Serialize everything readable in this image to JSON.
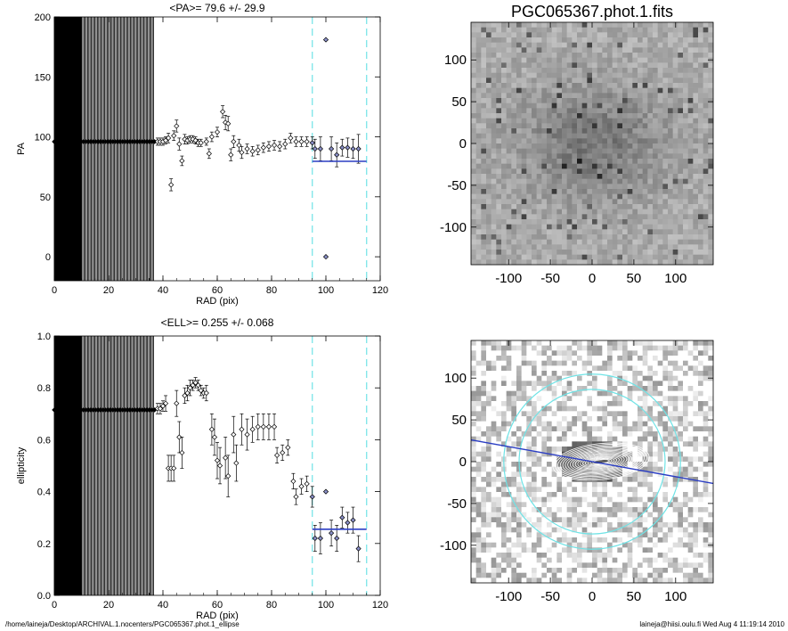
{
  "chart_data": [
    {
      "type": "scatter",
      "panel": "pa-profile",
      "title": "<PA>=  79.6 +/-  29.9",
      "xlabel": "RAD (pix)",
      "ylabel": "PA",
      "xlim": [
        0,
        120
      ],
      "ylim": [
        -20,
        200
      ],
      "xticks": [
        0,
        20,
        40,
        60,
        80,
        100,
        120
      ],
      "yticks": [
        0,
        50,
        100,
        150,
        200
      ],
      "grid": false,
      "inner_flat_value": 96,
      "inner_flat_until": 37,
      "points": [
        {
          "x": 38,
          "y": 96,
          "e": 3
        },
        {
          "x": 39,
          "y": 96,
          "e": 3
        },
        {
          "x": 40,
          "y": 96,
          "e": 3
        },
        {
          "x": 41,
          "y": 97,
          "e": 3
        },
        {
          "x": 42,
          "y": 99,
          "e": 4
        },
        {
          "x": 43,
          "y": 60,
          "e": 5
        },
        {
          "x": 44,
          "y": 101,
          "e": 4
        },
        {
          "x": 45,
          "y": 109,
          "e": 5
        },
        {
          "x": 46,
          "y": 94,
          "e": 5
        },
        {
          "x": 47,
          "y": 80,
          "e": 4
        },
        {
          "x": 48,
          "y": 98,
          "e": 4
        },
        {
          "x": 49,
          "y": 97,
          "e": 3
        },
        {
          "x": 50,
          "y": 98,
          "e": 3
        },
        {
          "x": 51,
          "y": 98,
          "e": 3
        },
        {
          "x": 52,
          "y": 97,
          "e": 3
        },
        {
          "x": 53,
          "y": 95,
          "e": 3
        },
        {
          "x": 54,
          "y": 95,
          "e": 3
        },
        {
          "x": 56,
          "y": 96,
          "e": 3
        },
        {
          "x": 57,
          "y": 86,
          "e": 4
        },
        {
          "x": 58,
          "y": 100,
          "e": 4
        },
        {
          "x": 60,
          "y": 104,
          "e": 4
        },
        {
          "x": 62,
          "y": 121,
          "e": 5
        },
        {
          "x": 63,
          "y": 112,
          "e": 6
        },
        {
          "x": 64,
          "y": 111,
          "e": 6
        },
        {
          "x": 65,
          "y": 85,
          "e": 5
        },
        {
          "x": 66,
          "y": 96,
          "e": 5
        },
        {
          "x": 68,
          "y": 93,
          "e": 5
        },
        {
          "x": 69,
          "y": 87,
          "e": 5
        },
        {
          "x": 71,
          "y": 90,
          "e": 4
        },
        {
          "x": 73,
          "y": 88,
          "e": 4
        },
        {
          "x": 75,
          "y": 89,
          "e": 4
        },
        {
          "x": 77,
          "y": 91,
          "e": 4
        },
        {
          "x": 79,
          "y": 92,
          "e": 4
        },
        {
          "x": 81,
          "y": 93,
          "e": 4
        },
        {
          "x": 83,
          "y": 92,
          "e": 4
        },
        {
          "x": 85,
          "y": 94,
          "e": 4
        },
        {
          "x": 87,
          "y": 99,
          "e": 4
        },
        {
          "x": 89,
          "y": 96,
          "e": 4
        },
        {
          "x": 91,
          "y": 96,
          "e": 4
        },
        {
          "x": 93,
          "y": 96,
          "e": 4
        },
        {
          "x": 95,
          "y": 95,
          "e": 5
        },
        {
          "x": 96,
          "y": 90,
          "e": 8
        },
        {
          "x": 98,
          "y": 90,
          "e": 10
        },
        {
          "x": 100,
          "y": 181,
          "e": 0
        },
        {
          "x": 100,
          "y": 0,
          "e": 0
        },
        {
          "x": 102,
          "y": 90,
          "e": 10
        },
        {
          "x": 104,
          "y": 85,
          "e": 10
        },
        {
          "x": 106,
          "y": 91,
          "e": 7
        },
        {
          "x": 108,
          "y": 91,
          "e": 8
        },
        {
          "x": 110,
          "y": 90,
          "e": 8
        },
        {
          "x": 112,
          "y": 90,
          "e": 12
        }
      ],
      "fit_range": [
        95,
        115
      ],
      "fit_value": 79.6,
      "fit_color": "#2b3ec4",
      "vline_color": "#6fe3e6"
    },
    {
      "type": "scatter",
      "panel": "ell-profile",
      "title": "<ELL>= 0.255 +/-  0.068",
      "xlabel": "RAD (pix)",
      "ylabel": "ellipticity",
      "xlim": [
        0,
        120
      ],
      "ylim": [
        0,
        1
      ],
      "xticks": [
        0,
        20,
        40,
        60,
        80,
        100,
        120
      ],
      "yticks": [
        0.0,
        0.2,
        0.4,
        0.6,
        0.8,
        1.0
      ],
      "grid": false,
      "inner_flat_value": 0.715,
      "inner_flat_until": 37,
      "points": [
        {
          "x": 38,
          "y": 0.72,
          "e": 0.02
        },
        {
          "x": 39,
          "y": 0.72,
          "e": 0.02
        },
        {
          "x": 40,
          "y": 0.73,
          "e": 0.02
        },
        {
          "x": 41,
          "y": 0.74,
          "e": 0.03
        },
        {
          "x": 42,
          "y": 0.49,
          "e": 0.05
        },
        {
          "x": 43,
          "y": 0.49,
          "e": 0.05
        },
        {
          "x": 44,
          "y": 0.49,
          "e": 0.05
        },
        {
          "x": 45,
          "y": 0.74,
          "e": 0.05
        },
        {
          "x": 46,
          "y": 0.61,
          "e": 0.06
        },
        {
          "x": 47,
          "y": 0.55,
          "e": 0.06
        },
        {
          "x": 48,
          "y": 0.77,
          "e": 0.03
        },
        {
          "x": 49,
          "y": 0.78,
          "e": 0.03
        },
        {
          "x": 50,
          "y": 0.8,
          "e": 0.03
        },
        {
          "x": 51,
          "y": 0.81,
          "e": 0.02
        },
        {
          "x": 52,
          "y": 0.82,
          "e": 0.02
        },
        {
          "x": 53,
          "y": 0.81,
          "e": 0.02
        },
        {
          "x": 54,
          "y": 0.79,
          "e": 0.02
        },
        {
          "x": 55,
          "y": 0.78,
          "e": 0.02
        },
        {
          "x": 56,
          "y": 0.78,
          "e": 0.03
        },
        {
          "x": 58,
          "y": 0.64,
          "e": 0.06
        },
        {
          "x": 59,
          "y": 0.61,
          "e": 0.07
        },
        {
          "x": 60,
          "y": 0.52,
          "e": 0.07
        },
        {
          "x": 61,
          "y": 0.5,
          "e": 0.07
        },
        {
          "x": 63,
          "y": 0.53,
          "e": 0.08
        },
        {
          "x": 64,
          "y": 0.46,
          "e": 0.08
        },
        {
          "x": 66,
          "y": 0.62,
          "e": 0.07
        },
        {
          "x": 67,
          "y": 0.51,
          "e": 0.07
        },
        {
          "x": 69,
          "y": 0.64,
          "e": 0.06
        },
        {
          "x": 71,
          "y": 0.62,
          "e": 0.06
        },
        {
          "x": 73,
          "y": 0.64,
          "e": 0.05
        },
        {
          "x": 75,
          "y": 0.65,
          "e": 0.05
        },
        {
          "x": 77,
          "y": 0.65,
          "e": 0.05
        },
        {
          "x": 79,
          "y": 0.65,
          "e": 0.05
        },
        {
          "x": 81,
          "y": 0.65,
          "e": 0.05
        },
        {
          "x": 82,
          "y": 0.54,
          "e": 0.03
        },
        {
          "x": 84,
          "y": 0.55,
          "e": 0.03
        },
        {
          "x": 86,
          "y": 0.57,
          "e": 0.03
        },
        {
          "x": 88,
          "y": 0.44,
          "e": 0.03
        },
        {
          "x": 89,
          "y": 0.38,
          "e": 0.03
        },
        {
          "x": 91,
          "y": 0.42,
          "e": 0.03
        },
        {
          "x": 93,
          "y": 0.43,
          "e": 0.03
        },
        {
          "x": 95,
          "y": 0.38,
          "e": 0.04
        },
        {
          "x": 96,
          "y": 0.22,
          "e": 0.05
        },
        {
          "x": 98,
          "y": 0.22,
          "e": 0.06
        },
        {
          "x": 100,
          "y": 0.4,
          "e": 0
        },
        {
          "x": 102,
          "y": 0.24,
          "e": 0.05
        },
        {
          "x": 104,
          "y": 0.22,
          "e": 0.05
        },
        {
          "x": 106,
          "y": 0.3,
          "e": 0.04
        },
        {
          "x": 108,
          "y": 0.28,
          "e": 0.04
        },
        {
          "x": 110,
          "y": 0.29,
          "e": 0.05
        },
        {
          "x": 112,
          "y": 0.18,
          "e": 0.05
        }
      ],
      "fit_range": [
        95,
        115
      ],
      "fit_value": 0.255,
      "fit_color": "#2b3ec4",
      "vline_color": "#6fe3e6"
    },
    {
      "type": "heatmap",
      "panel": "image-top",
      "title": "PGC065367.phot.1.fits",
      "xlim": [
        -145,
        145
      ],
      "ylim": [
        -145,
        145
      ],
      "xticks": [
        -100,
        -50,
        0,
        50,
        100
      ],
      "yticks": [
        -100,
        -50,
        0,
        50,
        100
      ],
      "grid": false
    },
    {
      "type": "heatmap",
      "panel": "image-bottom",
      "title": "",
      "xlim": [
        -145,
        145
      ],
      "ylim": [
        -145,
        145
      ],
      "xticks": [
        -100,
        -50,
        0,
        50,
        100
      ],
      "yticks": [
        -100,
        -50,
        0,
        50,
        100
      ],
      "grid": false,
      "pa_line_angle_deg": 79.6,
      "pa_line_color": "#2b3ec4",
      "ellipse_color": "#6fe3e6",
      "ellipse_semimajor": [
        95,
        115
      ],
      "ellipticity": 0.255
    }
  ],
  "footer": {
    "path": "/home/laineja/Desktop/ARCHIVAL.1.nocenters/PGC065367.phot.1_ellipse",
    "user_date": "laineja@hiisi.oulu.fi  Wed Aug  4 11:19:14 2010"
  }
}
